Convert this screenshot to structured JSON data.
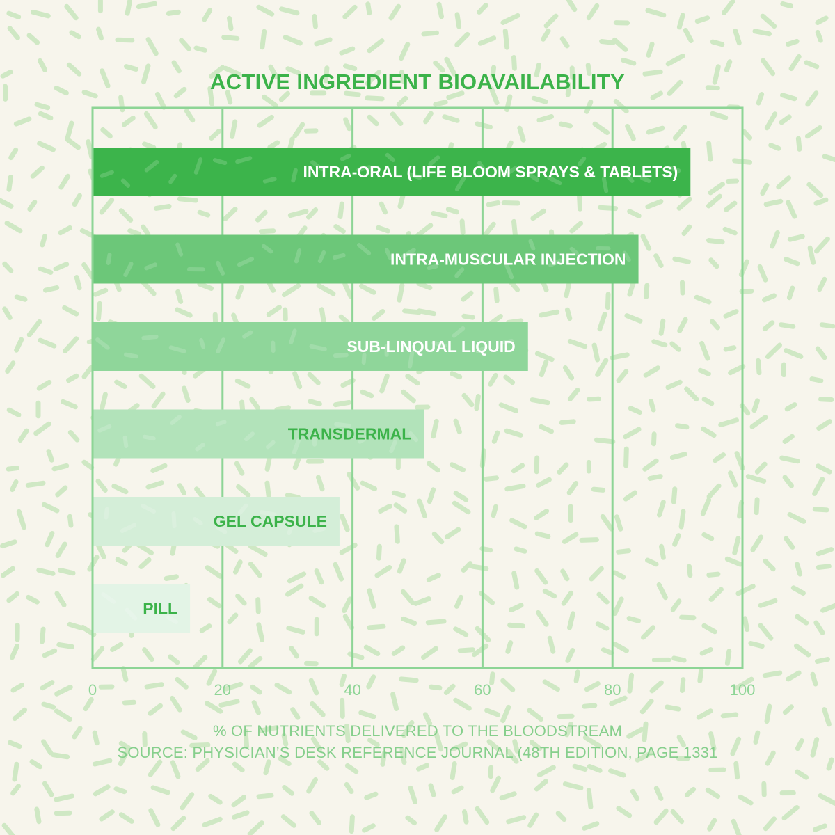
{
  "chart_data": {
    "type": "bar",
    "orientation": "horizontal",
    "title": "ACTIVE INGREDIENT BIOAVAILABILITY",
    "xlabel": "% OF NUTRIENTS DELIVERED TO THE BLOODSTREAM",
    "source": "SOURCE: PHYSICIAN’S DESK REFERENCE JOURNAL (48TH EDITION, PAGE 1331",
    "xlim": [
      0,
      100
    ],
    "xticks": [
      "0",
      "20",
      "40",
      "60",
      "80",
      "100"
    ],
    "grid": true,
    "categories": [
      "INTRA-ORAL (LIFE BLOOM SPRAYS & TABLETS)",
      "INTRA-MUSCULAR INJECTION",
      "SUB-LINQUAL LIQUID",
      "TRANSDERMAL",
      "GEL CAPSULE",
      "PILL"
    ],
    "values": [
      92,
      84,
      67,
      51,
      38,
      15
    ],
    "bar_colors": [
      "#3cb44b",
      "#6cc779",
      "#8fd69a",
      "#b2e3ba",
      "#d4eed8",
      "#e3f4e6"
    ],
    "label_colors": [
      "#ffffff",
      "#ffffff",
      "#ffffff",
      "#3cb34a",
      "#3cb34a",
      "#3cb34a"
    ],
    "colors": {
      "frame": "#8ed596",
      "tick_label": "#8ed596",
      "title": "#3cb34a",
      "background": "#f7f5ec",
      "dash": "#cfe8c4"
    }
  }
}
